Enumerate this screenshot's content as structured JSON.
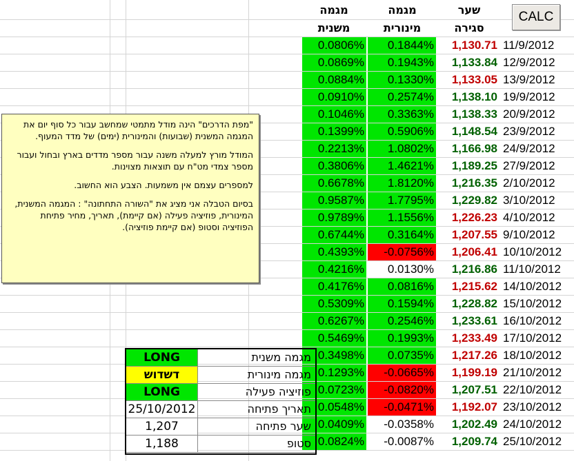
{
  "calc_button": "CALC",
  "headers": {
    "major": [
      "מגמה",
      "משנית"
    ],
    "minor": [
      "מגמה",
      "מינורית"
    ],
    "close": [
      "שער",
      "סגירה"
    ]
  },
  "colors": {
    "green": "#00e600",
    "red": "#ff0000",
    "close_red": "#c00000",
    "close_green": "#006000",
    "yellow": "#ffff00",
    "note_bg": "#ffffc0"
  },
  "rows": [
    {
      "date": "11/9/2012",
      "close": "1,130.71",
      "close_color": "red",
      "minor": "0.1844%",
      "minor_color": "green",
      "major": "0.0806%",
      "major_color": "green"
    },
    {
      "date": "12/9/2012",
      "close": "1,133.84",
      "close_color": "green",
      "minor": "0.1943%",
      "minor_color": "green",
      "major": "0.0869%",
      "major_color": "green"
    },
    {
      "date": "13/9/2012",
      "close": "1,133.05",
      "close_color": "red",
      "minor": "0.1330%",
      "minor_color": "green",
      "major": "0.0884%",
      "major_color": "green"
    },
    {
      "date": "19/9/2012",
      "close": "1,138.10",
      "close_color": "green",
      "minor": "0.2574%",
      "minor_color": "green",
      "major": "0.0910%",
      "major_color": "green"
    },
    {
      "date": "20/9/2012",
      "close": "1,138.33",
      "close_color": "green",
      "minor": "0.3363%",
      "minor_color": "green",
      "major": "0.1046%",
      "major_color": "green"
    },
    {
      "date": "23/9/2012",
      "close": "1,148.54",
      "close_color": "green",
      "minor": "0.5906%",
      "minor_color": "green",
      "major": "0.1399%",
      "major_color": "green"
    },
    {
      "date": "24/9/2012",
      "close": "1,166.98",
      "close_color": "green",
      "minor": "1.0802%",
      "minor_color": "green",
      "major": "0.2213%",
      "major_color": "green"
    },
    {
      "date": "27/9/2012",
      "close": "1,189.25",
      "close_color": "green",
      "minor": "1.4621%",
      "minor_color": "green",
      "major": "0.3806%",
      "major_color": "green"
    },
    {
      "date": "2/10/2012",
      "close": "1,216.35",
      "close_color": "green",
      "minor": "1.8120%",
      "minor_color": "green",
      "major": "0.6678%",
      "major_color": "green"
    },
    {
      "date": "3/10/2012",
      "close": "1,229.82",
      "close_color": "green",
      "minor": "1.7795%",
      "minor_color": "green",
      "major": "0.9587%",
      "major_color": "green"
    },
    {
      "date": "4/10/2012",
      "close": "1,226.23",
      "close_color": "red",
      "minor": "1.1556%",
      "minor_color": "green",
      "major": "0.9789%",
      "major_color": "green"
    },
    {
      "date": "9/10/2012",
      "close": "1,207.55",
      "close_color": "red",
      "minor": "0.3164%",
      "minor_color": "green",
      "major": "0.6744%",
      "major_color": "green"
    },
    {
      "date": "10/10/2012",
      "close": "1,206.41",
      "close_color": "red",
      "minor": "-0.0756%",
      "minor_color": "red",
      "major": "0.4393%",
      "major_color": "green"
    },
    {
      "date": "11/10/2012",
      "close": "1,216.86",
      "close_color": "green",
      "minor": "0.0130%",
      "minor_color": "white",
      "major": "0.4216%",
      "major_color": "green"
    },
    {
      "date": "14/10/2012",
      "close": "1,215.62",
      "close_color": "red",
      "minor": "0.0816%",
      "minor_color": "green",
      "major": "0.4176%",
      "major_color": "green"
    },
    {
      "date": "15/10/2012",
      "close": "1,228.82",
      "close_color": "green",
      "minor": "0.1594%",
      "minor_color": "green",
      "major": "0.5309%",
      "major_color": "green"
    },
    {
      "date": "16/10/2012",
      "close": "1,233.61",
      "close_color": "green",
      "minor": "0.2546%",
      "minor_color": "green",
      "major": "0.6267%",
      "major_color": "green"
    },
    {
      "date": "17/10/2012",
      "close": "1,233.49",
      "close_color": "red",
      "minor": "0.1993%",
      "minor_color": "green",
      "major": "0.5469%",
      "major_color": "green"
    },
    {
      "date": "18/10/2012",
      "close": "1,217.26",
      "close_color": "red",
      "minor": "0.0735%",
      "minor_color": "green",
      "major": "0.3498%",
      "major_color": "green"
    },
    {
      "date": "21/10/2012",
      "close": "1,199.19",
      "close_color": "red",
      "minor": "-0.0665%",
      "minor_color": "red",
      "major": "0.1293%",
      "major_color": "green"
    },
    {
      "date": "22/10/2012",
      "close": "1,207.51",
      "close_color": "green",
      "minor": "-0.0820%",
      "minor_color": "red",
      "major": "0.0723%",
      "major_color": "green"
    },
    {
      "date": "23/10/2012",
      "close": "1,192.07",
      "close_color": "red",
      "minor": "-0.0471%",
      "minor_color": "red",
      "major": "0.0548%",
      "major_color": "green"
    },
    {
      "date": "24/10/2012",
      "close": "1,202.49",
      "close_color": "green",
      "minor": "-0.0358%",
      "minor_color": "white",
      "major": "0.0409%",
      "major_color": "green"
    },
    {
      "date": "25/10/2012",
      "close": "1,209.74",
      "close_color": "green",
      "minor": "-0.0087%",
      "minor_color": "white",
      "major": "0.0824%",
      "major_color": "green"
    }
  ],
  "note": {
    "p1": "\"מפת הדרכים\" הינה  מודל מתמטי שמחשב עבור כל סוף יום את המגמה המשנית (שבועות) והמינורית (ימים) של מדד המעוף.",
    "p2": "המודל מורץ למעלה משנה עבור מספר מדדים בארץ ובחול ועבור מספר צמדי מט\"ח עם תוצאות מצוינות.",
    "p3": "למספרים עצמם אין משמעות.  הצבע הוא החשוב.",
    "p4": "בסיום הטבלה אני מציג את \"השורה התחתונה\" : המגמה המשנית, המינורית, פוזיציה פעילה (אם קיימת), תאריך, מחיר פתיחת הפוזיציה וסטופ (אם קיימת פוזיציה)."
  },
  "status": [
    {
      "label": "מגמה משנית",
      "value": "LONG",
      "bg": "green",
      "bold": true
    },
    {
      "label": "מגמה מינורית",
      "value": "דשדוש",
      "bg": "yellow",
      "bold": true
    },
    {
      "label": "פוזיציה פעילה",
      "value": "LONG",
      "bg": "green",
      "bold": true
    },
    {
      "label": "תאריך פתיחה",
      "value": "25/10/2012",
      "bg": "white",
      "bold": false
    },
    {
      "label": "שער פתיחה",
      "value": "1,207",
      "bg": "white",
      "bold": false
    },
    {
      "label": "סטופ",
      "value": "1,188",
      "bg": "white",
      "bold": false
    }
  ]
}
